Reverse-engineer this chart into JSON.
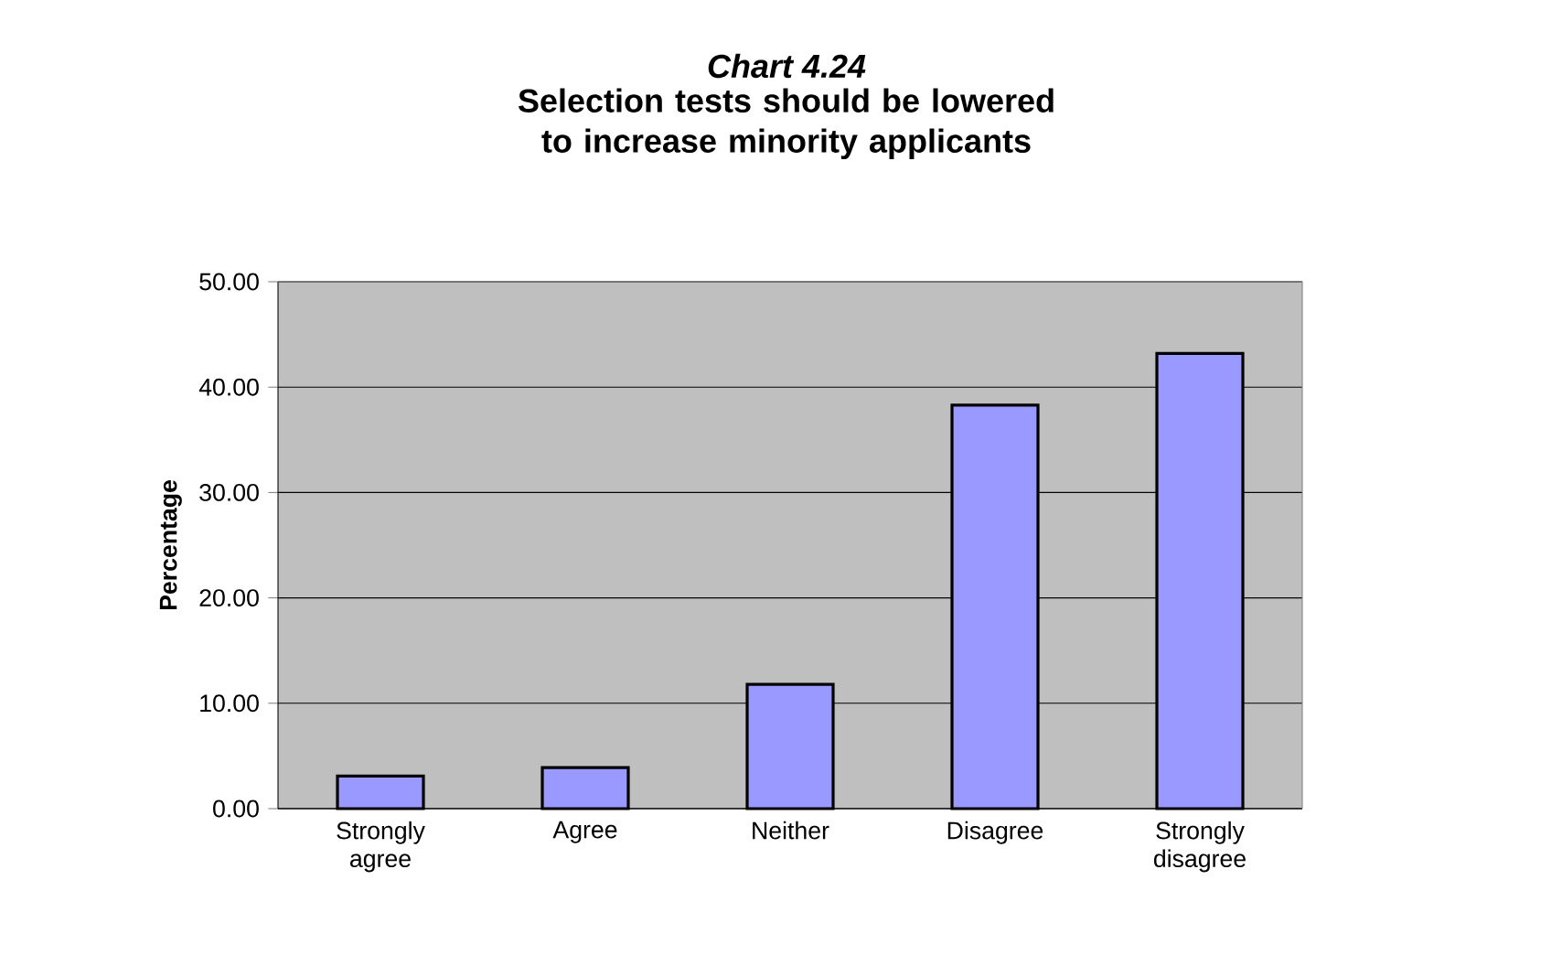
{
  "chart_data": {
    "type": "bar",
    "title": "Chart 4.24",
    "subtitle": "Selection tests should be lowered to increase minority applicants",
    "ylabel": "Percentage",
    "categories": [
      "Strongly agree",
      "Agree",
      "Neither",
      "Disagree",
      "Strongly disagree"
    ],
    "values": [
      3.1,
      3.9,
      11.8,
      38.3,
      43.2
    ],
    "color": "#9999ff",
    "ylim": [
      0,
      50
    ],
    "yticks": [
      {
        "value": 0,
        "label": "0.00"
      },
      {
        "value": 10,
        "label": "10.00"
      },
      {
        "value": 20,
        "label": "20.00"
      },
      {
        "value": 30,
        "label": "30.00"
      },
      {
        "value": 40,
        "label": "40.00"
      },
      {
        "value": 50,
        "label": "50.00"
      }
    ],
    "grid": "y"
  }
}
